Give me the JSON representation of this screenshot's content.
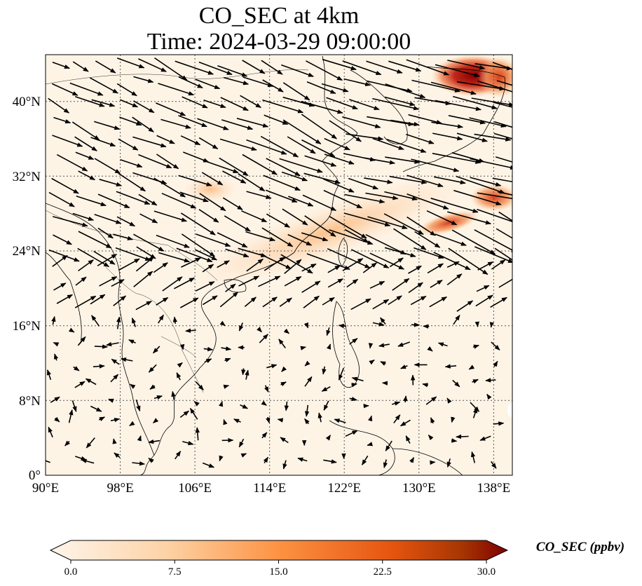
{
  "title_line1": "CO_SEC at 4km",
  "title_line2": "Time: 2024-03-29 09:00:00",
  "lon_ticks": [
    "90°E",
    "98°E",
    "106°E",
    "114°E",
    "122°E",
    "130°E",
    "138°E"
  ],
  "lat_ticks": [
    "0°",
    "8°N",
    "16°N",
    "24°N",
    "32°N",
    "40°N"
  ],
  "colorbar": {
    "label": "CO_SEC (ppbv)",
    "ticks": [
      "0.0",
      "7.5",
      "15.0",
      "22.5",
      "30.0"
    ],
    "colors": [
      "#fff5eb",
      "#fdd3a7",
      "#fd9243",
      "#e5540f",
      "#a63603",
      "#7f0000"
    ]
  },
  "map": {
    "extent": {
      "lon_min": 90,
      "lon_max": 140,
      "lat_min": 0,
      "lat_max": 45
    },
    "plume": {
      "hotspot_regions": [
        "Sea of Japan / Hokkaido region",
        "south of Japan (Pacific)"
      ],
      "peak_value_ppbv": 30
    },
    "wind_vectors": "predominantly westerly to north-westerly over mid-latitudes; weak, variable over tropics"
  }
}
